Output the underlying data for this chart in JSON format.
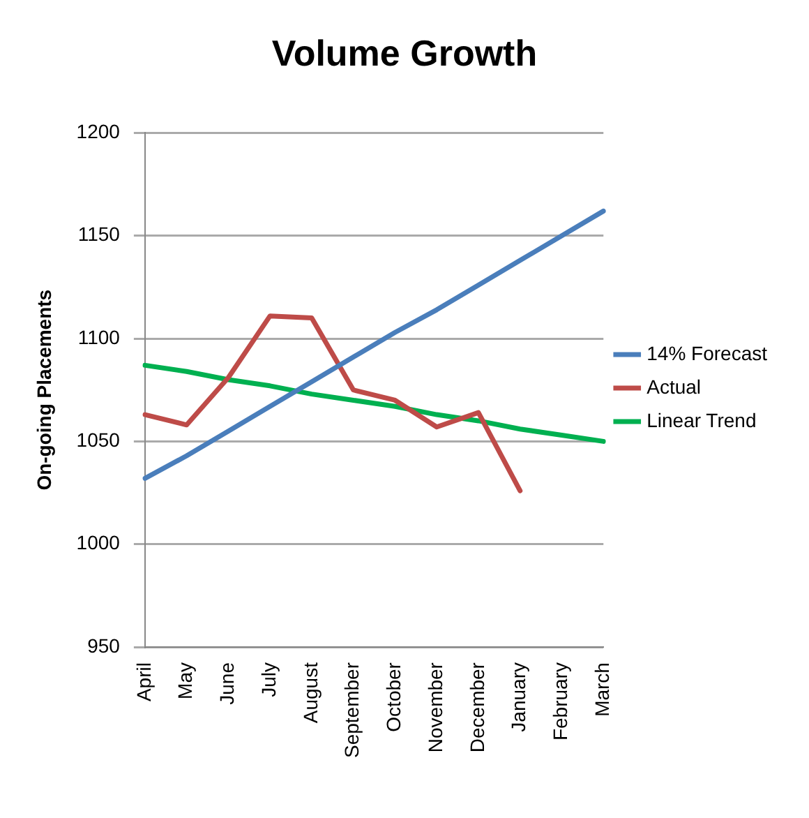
{
  "chart_data": {
    "type": "line",
    "title": "Volume Growth",
    "ylabel": "On-going Placements",
    "categories": [
      "April",
      "May",
      "June",
      "July",
      "August",
      "September",
      "October",
      "November",
      "December",
      "January",
      "February",
      "March"
    ],
    "series": [
      {
        "name": "14% Forecast",
        "color": "#4a7ebb",
        "values": [
          1032,
          1043,
          1055,
          1067,
          1079,
          1091,
          1103,
          1114,
          1126,
          1138,
          1150,
          1162
        ]
      },
      {
        "name": "Actual",
        "color": "#be4b48",
        "values": [
          1063,
          1058,
          1081,
          1111,
          1110,
          1075,
          1070,
          1057,
          1064,
          1026,
          null,
          null
        ]
      },
      {
        "name": "Linear Trend",
        "color": "#00b050",
        "values": [
          1087,
          1084,
          1080,
          1077,
          1073,
          1070,
          1067,
          1063,
          1060,
          1056,
          1053,
          1050
        ]
      }
    ],
    "ylim": [
      950,
      1200
    ],
    "yticks": [
      950,
      1000,
      1050,
      1100,
      1150,
      1200
    ],
    "grid": "y",
    "legend": "right",
    "marker": "none",
    "line_style": "solid"
  }
}
